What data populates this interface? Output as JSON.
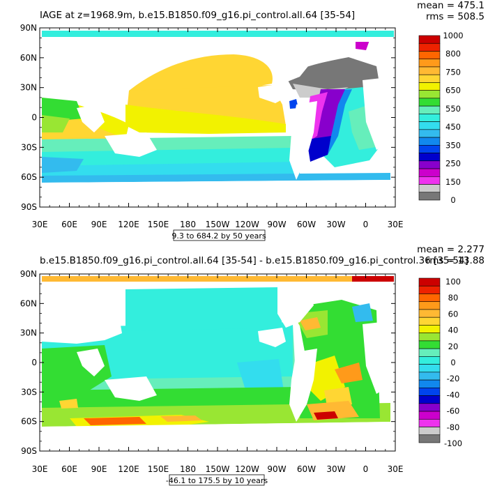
{
  "chart_data": [
    {
      "type": "heatmap",
      "title": "IAGE at z=1968.9m, b.e15.B1850.f09_g16.pi_control.all.64 [35-54]",
      "stats": {
        "mean": "mean = 475.1",
        "rms": "rms = 508.5"
      },
      "x_ticks": [
        "30E",
        "60E",
        "90E",
        "120E",
        "150E",
        "180",
        "150W",
        "120W",
        "90W",
        "60W",
        "30W",
        "0",
        "30E"
      ],
      "y_ticks": [
        "90N",
        "60N",
        "30N",
        "0",
        "30S",
        "60S",
        "90S"
      ],
      "contour_info": "9.3 to 684.2 by 50 years",
      "colorbar_labels": [
        "1000",
        "800",
        "750",
        "650",
        "550",
        "450",
        "350",
        "250",
        "150",
        "0"
      ],
      "colors": [
        "#cc0000",
        "#ee2200",
        "#ff6600",
        "#ff9a1a",
        "#ffb933",
        "#ffd633",
        "#f2f200",
        "#99e633",
        "#33dd33",
        "#66eebb",
        "#33eedd",
        "#33ddee",
        "#33bbee",
        "#1188ee",
        "#0044ee",
        "#0000cc",
        "#8800cc",
        "#cc00cc",
        "#ee33ee",
        "#cccccc",
        "#777777"
      ]
    },
    {
      "type": "heatmap",
      "title": "b.e15.B1850.f09_g16.pi_control.all.64 [35-54] - b.e15.B1850.f09_g16.pi_control.36 [35-54]",
      "stats": {
        "mean": "mean = 2.277",
        "rms": "rms = 13.88"
      },
      "x_ticks": [
        "30E",
        "60E",
        "90E",
        "120E",
        "150E",
        "180",
        "150W",
        "120W",
        "90W",
        "60W",
        "30W",
        "0",
        "30E"
      ],
      "y_ticks": [
        "90N",
        "60N",
        "30N",
        "0",
        "30S",
        "60S",
        "90S"
      ],
      "contour_info": "-46.1 to 175.5 by 10 years",
      "colorbar_labels": [
        "100",
        "80",
        "60",
        "40",
        "20",
        "0",
        "-20",
        "-40",
        "-60",
        "-80",
        "-100"
      ],
      "colors": [
        "#cc0000",
        "#ee2200",
        "#ff6600",
        "#ff9a1a",
        "#ffb933",
        "#ffd633",
        "#f2f200",
        "#99e633",
        "#33dd33",
        "#66eebb",
        "#33eedd",
        "#33ddee",
        "#33bbee",
        "#1188ee",
        "#0044ee",
        "#0000cc",
        "#8800cc",
        "#cc00cc",
        "#ee33ee",
        "#cccccc",
        "#777777"
      ]
    }
  ]
}
